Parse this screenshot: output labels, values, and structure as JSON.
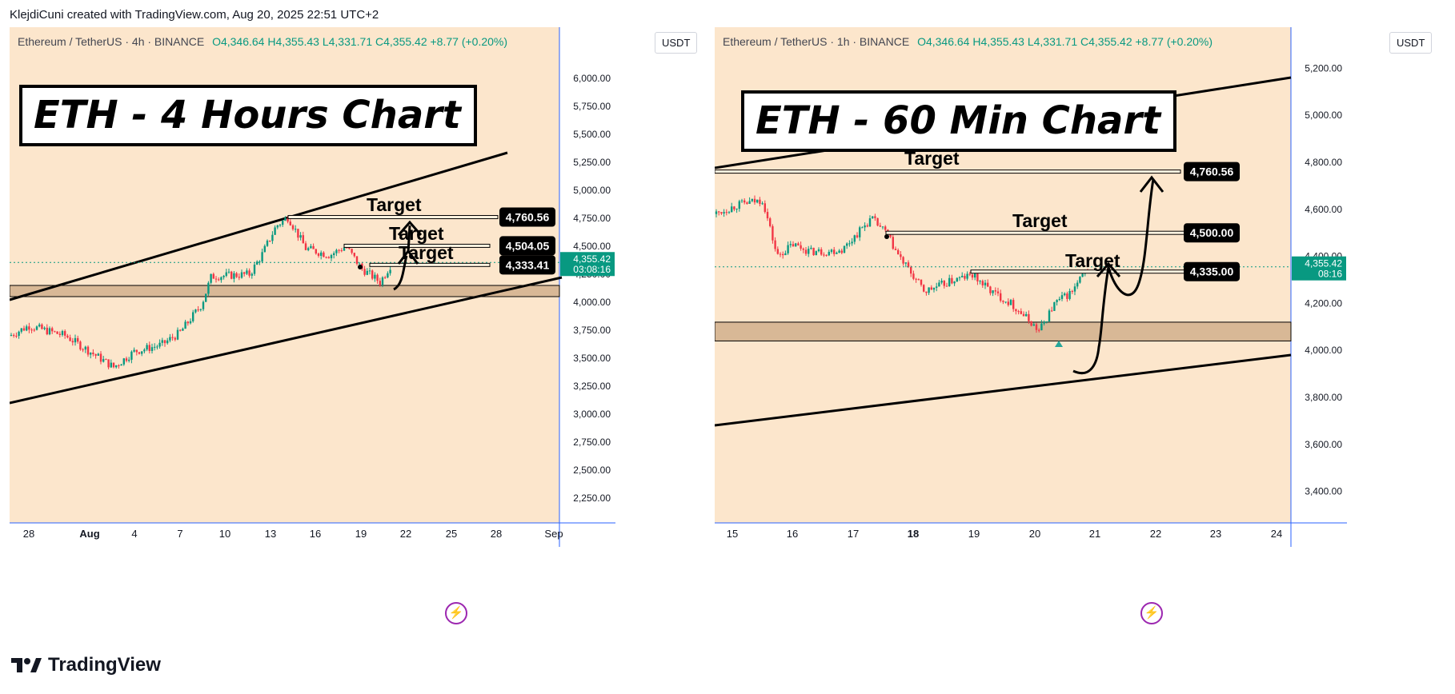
{
  "header": {
    "text": "KlejdiCuni created with TradingView.com, Aug 20, 2025 22:51 UTC+2"
  },
  "footer": {
    "brand": "TradingView"
  },
  "colors": {
    "background": "#fce6cc",
    "up": "#089981",
    "down": "#f23645",
    "zone": "#d8b896",
    "price_badge": "#089981",
    "axis_line": "#2962ff",
    "bolt": "#9c27b0"
  },
  "left": {
    "symbol": "Ethereum / TetherUS · 4h · BINANCE",
    "ohlc": "O4,346.64  H4,355.43  L4,331.71  C4,355.42  +8.77 (+0.20%)",
    "unit": "USDT",
    "title": "ETH - 4 Hours Chart",
    "y_ticks": [
      "6,000.00",
      "5,750.00",
      "5,500.00",
      "5,250.00",
      "5,000.00",
      "4,750.00",
      "4,500.00",
      "4,250.00",
      "4,000.00",
      "3,750.00",
      "3,500.00",
      "3,250.00",
      "3,000.00",
      "2,750.00",
      "2,500.00",
      "2,250.00"
    ],
    "x_ticks": [
      "28",
      "Aug",
      "4",
      "7",
      "10",
      "13",
      "16",
      "19",
      "22",
      "25",
      "28",
      "Sep"
    ],
    "price_badge": {
      "value": "4,355.42",
      "countdown": "03:08:16"
    },
    "targets": [
      "Target",
      "Target",
      "Target"
    ],
    "levels": [
      "4,760.56",
      "4,504.05",
      "4,333.41"
    ]
  },
  "right": {
    "symbol": "Ethereum / TetherUS · 1h · BINANCE",
    "ohlc": "O4,346.64  H4,355.43  L4,331.71  C4,355.42  +8.77 (+0.20%)",
    "unit": "USDT",
    "title": "ETH - 60 Min Chart",
    "y_ticks": [
      "5,200.00",
      "5,000.00",
      "4,800.00",
      "4,600.00",
      "4,400.00",
      "4,200.00",
      "4,000.00",
      "3,800.00",
      "3,600.00",
      "3,400.00"
    ],
    "x_ticks": [
      "15",
      "16",
      "17",
      "18",
      "19",
      "20",
      "21",
      "22",
      "23",
      "24"
    ],
    "price_badge": {
      "value": "4,355.42",
      "countdown": "08:16"
    },
    "targets": [
      "Target",
      "Target",
      "Target"
    ],
    "levels": [
      "4,760.56",
      "4,500.00",
      "4,335.00"
    ]
  },
  "chart_data": [
    {
      "type": "candlestick",
      "title": "ETH - 4 Hours Chart",
      "ylim": [
        2100,
        6300
      ],
      "x_ticks": [
        "28",
        "Aug",
        "4",
        "7",
        "10",
        "13",
        "16",
        "19",
        "22",
        "25",
        "28",
        "Sep"
      ],
      "last_price": 4355.42,
      "close_path": [
        {
          "t": "Jul 26",
          "close": 3700
        },
        {
          "t": "Jul 28",
          "close": 3790
        },
        {
          "t": "Jul 31",
          "close": 3700
        },
        {
          "t": "Aug 2",
          "close": 3420
        },
        {
          "t": "Aug 4",
          "close": 3560
        },
        {
          "t": "Aug 6",
          "close": 3620
        },
        {
          "t": "Aug 7",
          "close": 3730
        },
        {
          "t": "Aug 8",
          "close": 3980
        },
        {
          "t": "Aug 9",
          "close": 4230
        },
        {
          "t": "Aug 11",
          "close": 4250
        },
        {
          "t": "Aug 12",
          "close": 4420
        },
        {
          "t": "Aug 13",
          "close": 4680
        },
        {
          "t": "Aug 14",
          "close": 4760
        },
        {
          "t": "Aug 15",
          "close": 4480
        },
        {
          "t": "Aug 16",
          "close": 4420
        },
        {
          "t": "Aug 17",
          "close": 4500
        },
        {
          "t": "Aug 18",
          "close": 4300
        },
        {
          "t": "Aug 19",
          "close": 4180
        },
        {
          "t": "Aug 20",
          "close": 4355
        }
      ],
      "levels": [
        4760.56,
        4504.05,
        4333.41
      ],
      "zone": [
        4050,
        4150
      ]
    },
    {
      "type": "candlestick",
      "title": "ETH - 60 Min Chart",
      "ylim": [
        3300,
        5300
      ],
      "x_ticks": [
        "15",
        "16",
        "17",
        "18",
        "19",
        "20",
        "21",
        "22",
        "23",
        "24"
      ],
      "last_price": 4355.42,
      "close_path": [
        {
          "t": "Aug 14 12:00",
          "close": 4580
        },
        {
          "t": "Aug 15 00:00",
          "close": 4620
        },
        {
          "t": "Aug 15 08:00",
          "close": 4640
        },
        {
          "t": "Aug 15 16:00",
          "close": 4400
        },
        {
          "t": "Aug 16 00:00",
          "close": 4450
        },
        {
          "t": "Aug 16 08:00",
          "close": 4420
        },
        {
          "t": "Aug 16 16:00",
          "close": 4420
        },
        {
          "t": "Aug 17 00:00",
          "close": 4430
        },
        {
          "t": "Aug 17 08:00",
          "close": 4520
        },
        {
          "t": "Aug 17 12:00",
          "close": 4560
        },
        {
          "t": "Aug 17 20:00",
          "close": 4500
        },
        {
          "t": "Aug 18 00:00",
          "close": 4400
        },
        {
          "t": "Aug 18 08:00",
          "close": 4250
        },
        {
          "t": "Aug 18 16:00",
          "close": 4300
        },
        {
          "t": "Aug 19 00:00",
          "close": 4320
        },
        {
          "t": "Aug 19 08:00",
          "close": 4250
        },
        {
          "t": "Aug 19 16:00",
          "close": 4200
        },
        {
          "t": "Aug 20 00:00",
          "close": 4120
        },
        {
          "t": "Aug 20 06:00",
          "close": 4080
        },
        {
          "t": "Aug 20 12:00",
          "close": 4200
        },
        {
          "t": "Aug 20 18:00",
          "close": 4250
        },
        {
          "t": "Aug 20 22:00",
          "close": 4355
        }
      ],
      "levels": [
        4760.56,
        4500.0,
        4335.0
      ],
      "zone": [
        4040,
        4120
      ]
    }
  ]
}
